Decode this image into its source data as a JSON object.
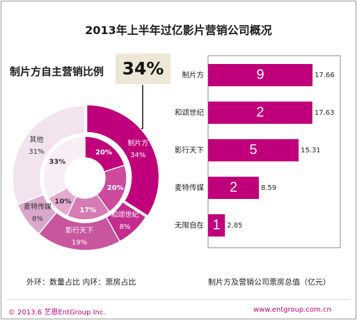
{
  "title": "2013年上半年过亿影片营销公司概况",
  "highlight": {
    "label": "制片方自主营销比例",
    "value": "34%"
  },
  "captions": {
    "rings": "外环：数量占比   内环：票房占比",
    "bars": "制片方及营销公司票房总值（亿元）"
  },
  "footer": {
    "copyright": "© 2013.6  艺恩EntGroup Inc.",
    "url": "www.entgroup.com.cn"
  },
  "chart_data": [
    {
      "type": "pie",
      "title": "",
      "rings": [
        {
          "name": "外环：数量占比",
          "labels": [
            "制片方",
            "和颂世纪",
            "影行天下",
            "麦特传媒",
            "其他"
          ],
          "values": [
            34,
            8,
            19,
            8,
            31
          ],
          "value_labels": [
            "34%",
            "8%",
            "19%",
            "8%",
            "31%"
          ],
          "colors": [
            "#c0007a",
            "#c42c8d",
            "#c8559e",
            "#dba8cc",
            "#f2e3ee"
          ]
        },
        {
          "name": "内环：票房占比",
          "labels": [
            "制片方",
            "和颂世纪",
            "影行天下",
            "麦特传媒",
            "其他"
          ],
          "values": [
            20,
            20,
            17,
            10,
            33
          ],
          "value_labels": [
            "20%",
            "20%",
            "17%",
            "10%",
            "33%"
          ],
          "colors": [
            "#c0007a",
            "#cd4a9c",
            "#d77bb4",
            "#e5a9cf",
            "#f8eef5"
          ]
        }
      ]
    },
    {
      "type": "bar",
      "orientation": "horizontal",
      "title": "制片方及营销公司票房总值（亿元）",
      "categories": [
        "制片方",
        "和颂世纪",
        "影行天下",
        "麦特传媒",
        "无限自在"
      ],
      "values": [
        17.66,
        17.63,
        15.31,
        8.59,
        2.85
      ],
      "counts": [
        "9",
        "2",
        "5",
        "2",
        "1"
      ],
      "value_labels": [
        "17.66",
        "17.63",
        "15.31",
        "8.59",
        "2.85"
      ],
      "xlim": [
        0,
        20
      ],
      "color": "#c0007a"
    }
  ]
}
